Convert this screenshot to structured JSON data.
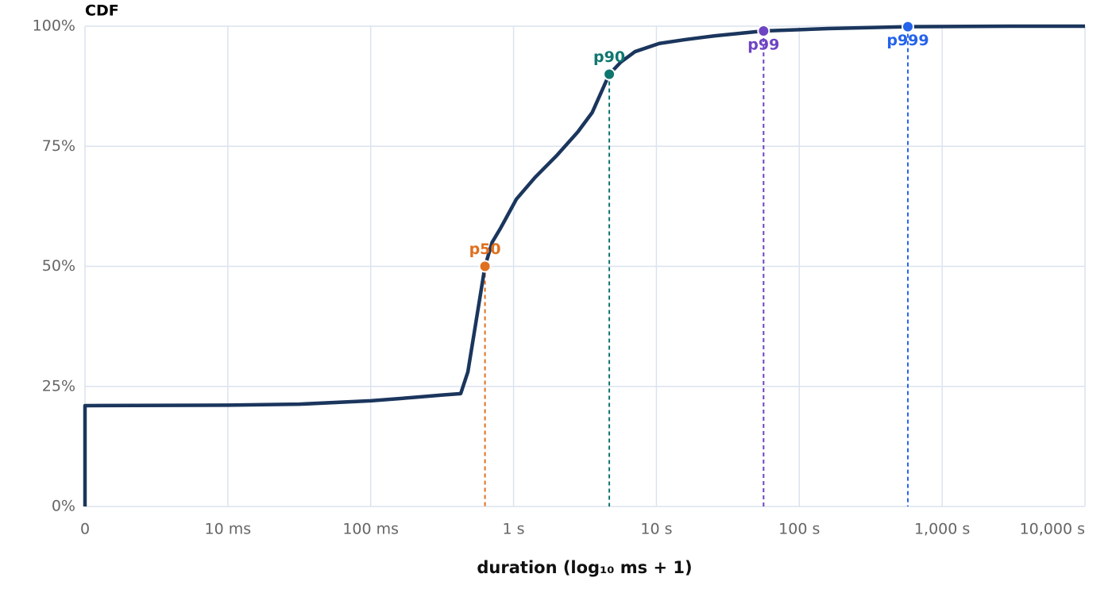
{
  "chart_data": {
    "type": "line",
    "title": "CDF",
    "x_label": "duration (log₁₀ ms + 1)",
    "x": [
      0,
      0,
      1,
      1.5,
      2,
      2.3,
      2.5,
      2.63,
      2.68,
      2.74,
      2.8,
      2.85,
      2.91,
      3.02,
      3.15,
      3.3,
      3.45,
      3.55,
      3.67,
      3.75,
      3.85,
      4.02,
      4.2,
      4.41,
      4.75,
      5.2,
      5.76,
      6.5,
      7
    ],
    "values": [
      0,
      21,
      21.1,
      21.3,
      22,
      22.7,
      23.2,
      23.5,
      28,
      39,
      50,
      55,
      58,
      64,
      68.5,
      73,
      78,
      82,
      90,
      92.5,
      94.7,
      96.4,
      97.2,
      98,
      99,
      99.5,
      99.9,
      100,
      100
    ],
    "color": "#1b365d",
    "markers": [
      {
        "label": "p50",
        "x": 2.8,
        "y": 50,
        "color": "#e0701f"
      },
      {
        "label": "p90",
        "x": 3.67,
        "y": 90,
        "color": "#0f766e"
      },
      {
        "label": "p99",
        "x": 4.75,
        "y": 99,
        "color": "#6d44c4"
      },
      {
        "label": "p999",
        "x": 5.76,
        "y": 99.9,
        "color": "#2563eb"
      }
    ],
    "xlim": [
      0,
      7
    ],
    "xticks": [
      0,
      {
        "value": 1,
        "label": "10 ms"
      },
      {
        "value": 2,
        "label": "100 ms"
      },
      {
        "value": 3,
        "label": "1 s"
      },
      {
        "value": 4,
        "label": "10 s"
      },
      {
        "value": 5,
        "label": "100 s"
      },
      {
        "value": 6,
        "label": "1,000 s"
      },
      {
        "value": 7,
        "label": "10,000 s"
      }
    ],
    "ylim": [
      0,
      100
    ],
    "yticks": [
      {
        "value": 0,
        "label": "0%"
      },
      {
        "value": 25,
        "label": "25%"
      },
      {
        "value": 50,
        "label": "50%"
      },
      {
        "value": 75,
        "label": "75%"
      },
      {
        "value": 100,
        "label": "100%"
      }
    ],
    "grid": true
  }
}
